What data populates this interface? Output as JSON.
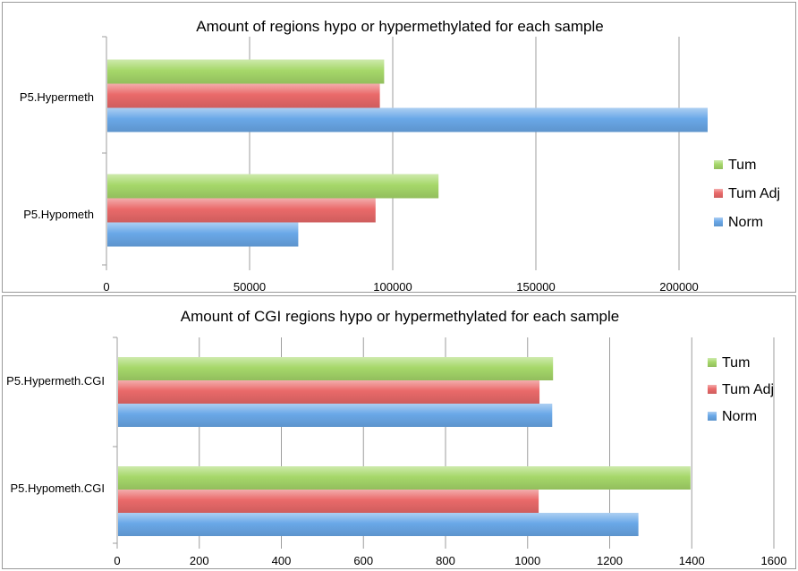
{
  "chart_data": [
    {
      "type": "bar",
      "orientation": "horizontal",
      "title": "Amount of regions hypo or hypermethylated for each sample",
      "categories": [
        "P5.Hypermeth",
        "P5.Hypometh"
      ],
      "series": [
        {
          "name": "Tum",
          "values": [
            97000,
            116000
          ],
          "color": "#a6d86a"
        },
        {
          "name": "Tum Adj",
          "values": [
            95500,
            94000
          ],
          "color": "#ea6a6a"
        },
        {
          "name": "Norm",
          "values": [
            210000,
            67000
          ],
          "color": "#6aa8e8"
        }
      ],
      "xticks": [
        "0",
        "50000",
        "100000",
        "150000",
        "200000"
      ],
      "xlim": [
        0,
        240000
      ],
      "grid": true,
      "legend": "right"
    },
    {
      "type": "bar",
      "orientation": "horizontal",
      "title": "Amount of CGI regions hypo or hypermethylated for each sample",
      "categories": [
        "P5.Hypermeth.CGI",
        "P5.Hypometh.CGI"
      ],
      "series": [
        {
          "name": "Tum",
          "values": [
            1062,
            1397
          ],
          "color": "#a6d86a"
        },
        {
          "name": "Tum Adj",
          "values": [
            1029,
            1027
          ],
          "color": "#ea6a6a"
        },
        {
          "name": "Norm",
          "values": [
            1060,
            1270
          ],
          "color": "#6aa8e8"
        }
      ],
      "xticks": [
        "0",
        "200",
        "400",
        "600",
        "800",
        "1000",
        "1200",
        "1400",
        "1600"
      ],
      "xlim": [
        0,
        1600
      ],
      "grid": true,
      "legend": "right"
    }
  ]
}
